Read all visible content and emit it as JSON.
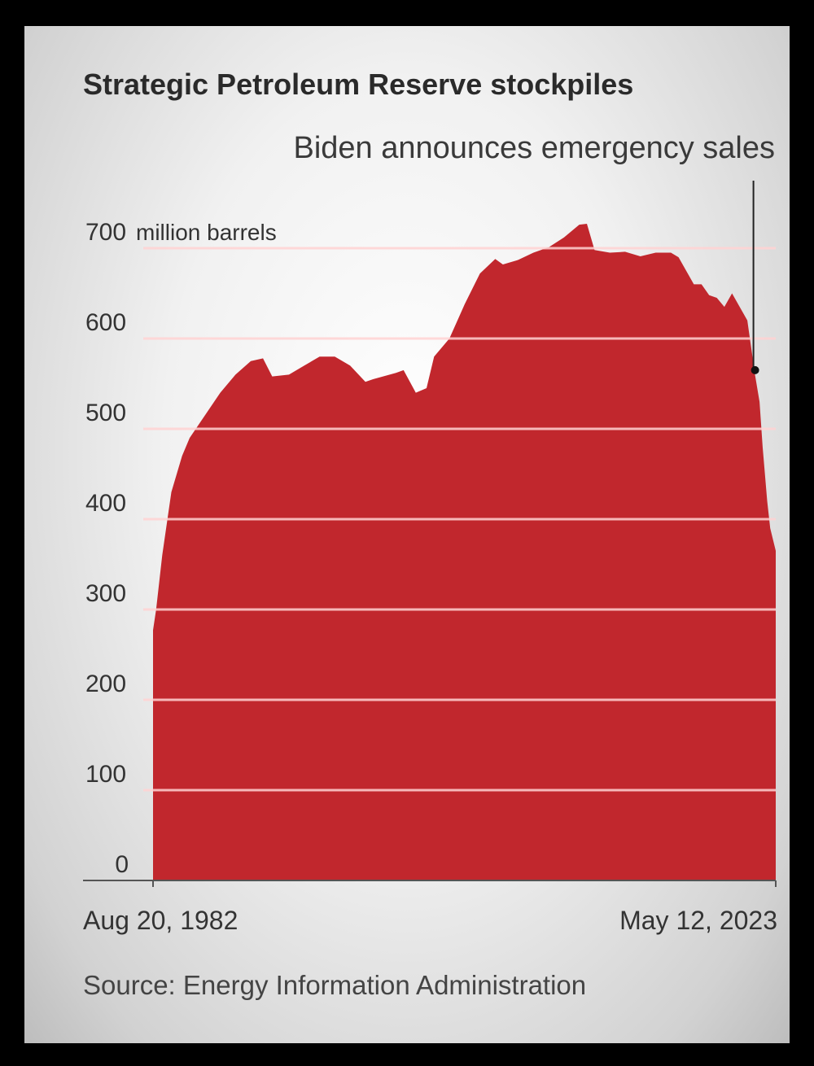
{
  "chart_data": {
    "type": "area",
    "title": "Strategic Petroleum Reserve stockpiles",
    "annotation": "Biden announces emergency sales",
    "unit_label": "million barrels",
    "y_ticks": [
      0,
      100,
      200,
      300,
      400,
      500,
      600,
      700
    ],
    "ylim": [
      0,
      700
    ],
    "x_range": [
      "Aug 20, 1982",
      "May 12, 2023"
    ],
    "x_tick_labels": [
      "Aug 20, 1982",
      "May 12, 2023"
    ],
    "grid": true,
    "color": "#c1272d",
    "annotation_x": 2021.9,
    "annotation_y": 565,
    "series": [
      {
        "x": [
          1982.6,
          1982.8,
          1983.2,
          1983.8,
          1984.5,
          1985.0,
          1986.0,
          1987.0,
          1988.0,
          1989.0,
          1989.8,
          1990.4,
          1991.5,
          1992.5,
          1993.5,
          1994.5,
          1995.5,
          1996.5,
          1997.0,
          1998.5,
          1999.0,
          1999.8,
          2000.5,
          2001.0,
          2002.0,
          2003.0,
          2004.0,
          2005.0,
          2005.5,
          2006.5,
          2007.5,
          2008.5,
          2009.5,
          2010.5,
          2011.0,
          2011.5,
          2012.5,
          2013.5,
          2014.5,
          2015.5,
          2016.5,
          2017.0,
          2017.5,
          2018.0,
          2018.5,
          2019.0,
          2019.5,
          2020.0,
          2020.5,
          2021.0,
          2021.5,
          2022.0,
          2022.3,
          2022.5,
          2022.8,
          2023.0,
          2023.36
        ],
        "y": [
          277,
          300,
          360,
          430,
          470,
          490,
          515,
          540,
          560,
          575,
          578,
          558,
          560,
          570,
          580,
          580,
          570,
          552,
          555,
          562,
          565,
          540,
          545,
          580,
          600,
          638,
          672,
          688,
          682,
          687,
          695,
          701,
          712,
          726,
          727,
          698,
          695,
          696,
          691,
          695,
          695,
          690,
          675,
          660,
          660,
          648,
          645,
          635,
          650,
          635,
          620,
          560,
          530,
          480,
          420,
          390,
          365
        ]
      }
    ]
  },
  "source": "Source: Energy Information Administration"
}
